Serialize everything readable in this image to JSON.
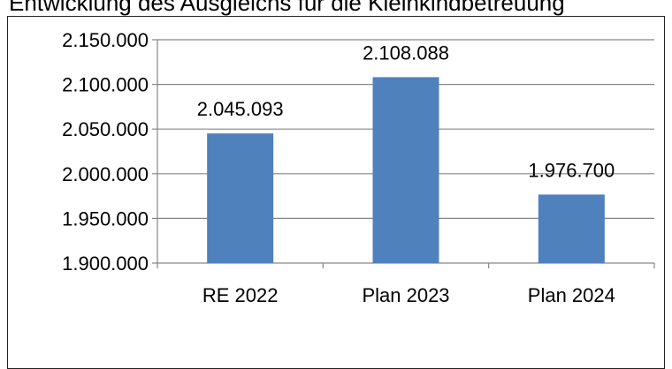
{
  "chart_data": {
    "type": "bar",
    "title": "Entwicklung des Ausgleichs für die Kleinkindbetreuung",
    "categories": [
      "RE 2022",
      "Plan 2023",
      "Plan 2024"
    ],
    "values": [
      2045093,
      2108088,
      1976700
    ],
    "value_labels": [
      "2.045.093",
      "2.108.088",
      "1.976.700"
    ],
    "ylim": [
      1900000,
      2150000
    ],
    "yticks": [
      1900000,
      1950000,
      2000000,
      2050000,
      2100000,
      2150000
    ],
    "ytick_labels": [
      "1.900.000",
      "1.950.000",
      "2.000.000",
      "2.050.000",
      "2.100.000",
      "2.150.000"
    ],
    "grid": true,
    "legend": "none",
    "bar_color": "#4F81BD",
    "gridline_color": "#868686"
  }
}
